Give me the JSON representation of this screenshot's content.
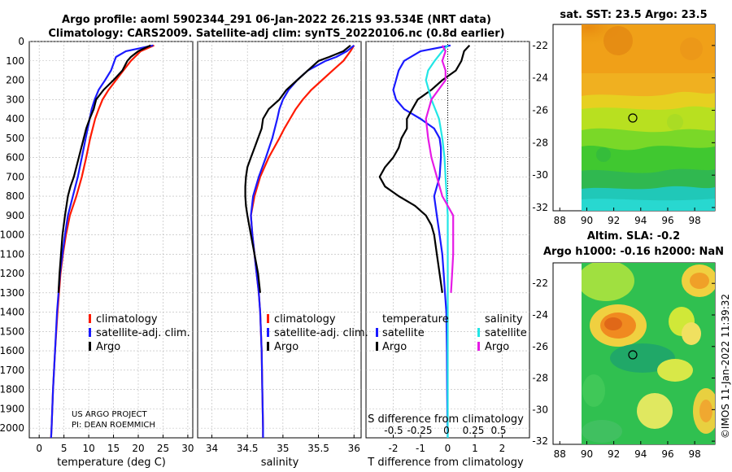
{
  "header": {
    "line1": "Argo profile: aoml 5902344_291 06-Jan-2022 26.21S 93.534E (NRT data)",
    "line2": "Climatology: CARS2009. Satellite-adj clim: synTS_20220106.nc (0.8d earlier)"
  },
  "colors": {
    "climatology": "#ff1a00",
    "satellite": "#1a1aff",
    "argo": "#000000",
    "sat_salinity": "#22e6e6",
    "argo_salinity": "#e61ae6"
  },
  "depth_axis": {
    "ticks": [
      "0",
      "100",
      "200",
      "300",
      "400",
      "500",
      "600",
      "700",
      "800",
      "900",
      "1000",
      "1100",
      "1200",
      "1300",
      "1400",
      "1500",
      "1600",
      "1700",
      "1800",
      "1900",
      "2000"
    ],
    "max": 2050
  },
  "chart_data": [
    {
      "type": "line",
      "name": "temperature",
      "xlabel": "temperature (deg C)",
      "xlim": [
        -2,
        31
      ],
      "xticks": [
        0,
        5,
        10,
        15,
        20,
        25,
        30
      ],
      "xtick_labels": [
        "0",
        "5",
        "10",
        "15",
        "20",
        "25",
        "30"
      ],
      "ylim": [
        2050,
        0
      ],
      "series": [
        {
          "name": "climatology",
          "depth": [
            20,
            50,
            100,
            150,
            200,
            250,
            300,
            350,
            400,
            500,
            600,
            700,
            800,
            900,
            1000,
            1100,
            1200,
            1400,
            1600,
            1800,
            2000,
            2050
          ],
          "values": [
            23.2,
            20.5,
            18.5,
            17.0,
            15.5,
            14.0,
            12.8,
            12.0,
            11.3,
            10.3,
            9.5,
            8.6,
            7.5,
            6.2,
            5.4,
            4.8,
            4.3,
            3.7,
            3.2,
            2.8,
            2.5,
            2.4
          ]
        },
        {
          "name": "satellite-adj. clim.",
          "depth": [
            20,
            50,
            80,
            100,
            150,
            200,
            250,
            300,
            350,
            400,
            500,
            600,
            700,
            800,
            900,
            1000,
            1100,
            1200,
            1400,
            1600,
            1800,
            2000,
            2050
          ],
          "values": [
            23.0,
            17.5,
            15.5,
            15.2,
            14.5,
            13.3,
            12.0,
            11.2,
            10.6,
            10.2,
            9.4,
            8.6,
            7.8,
            6.8,
            5.8,
            5.2,
            4.7,
            4.2,
            3.6,
            3.2,
            2.8,
            2.5,
            2.4
          ]
        },
        {
          "name": "Argo",
          "depth": [
            20,
            50,
            80,
            100,
            150,
            200,
            250,
            300,
            350,
            400,
            450,
            500,
            600,
            700,
            750,
            800,
            900,
            1000,
            1100,
            1200,
            1300
          ],
          "values": [
            22.5,
            20.0,
            18.5,
            17.8,
            16.8,
            15.0,
            13.0,
            11.5,
            11.0,
            10.2,
            9.5,
            9.0,
            8.0,
            7.0,
            6.3,
            5.8,
            5.2,
            4.7,
            4.4,
            4.1,
            3.9
          ]
        }
      ],
      "legend": [
        "climatology",
        "satellite-adj. clim.",
        "Argo"
      ],
      "annotations": [
        "US ARGO PROJECT",
        "PI: DEAN ROEMMICH"
      ]
    },
    {
      "type": "line",
      "name": "salinity",
      "xlabel": "salinity",
      "xlim": [
        33.8,
        36.1
      ],
      "xticks": [
        34,
        34.5,
        35,
        35.5,
        36
      ],
      "xtick_labels": [
        "34",
        "34.5",
        "35",
        "35.5",
        "36"
      ],
      "ylim": [
        2050,
        0
      ],
      "series": [
        {
          "name": "climatology",
          "depth": [
            20,
            50,
            100,
            150,
            200,
            250,
            300,
            350,
            400,
            450,
            500,
            600,
            700,
            800,
            900,
            1000,
            1100,
            1200,
            1300,
            1400,
            1600,
            1800,
            2000,
            2050
          ],
          "values": [
            36.0,
            35.95,
            35.85,
            35.7,
            35.55,
            35.4,
            35.28,
            35.18,
            35.1,
            35.02,
            34.95,
            34.8,
            34.68,
            34.6,
            34.55,
            34.57,
            34.6,
            34.63,
            34.66,
            34.68,
            34.7,
            34.71,
            34.72,
            34.72
          ]
        },
        {
          "name": "satellite-adj. clim.",
          "depth": [
            20,
            50,
            80,
            100,
            150,
            200,
            250,
            300,
            350,
            400,
            500,
            600,
            700,
            800,
            900,
            1000,
            1100,
            1200,
            1300,
            1400,
            1600,
            1800,
            2000,
            2050
          ],
          "values": [
            36.0,
            35.9,
            35.75,
            35.6,
            35.35,
            35.2,
            35.08,
            35.0,
            34.95,
            34.92,
            34.85,
            34.76,
            34.66,
            34.58,
            34.55,
            34.57,
            34.6,
            34.63,
            34.66,
            34.68,
            34.7,
            34.71,
            34.72,
            34.72
          ]
        },
        {
          "name": "Argo",
          "depth": [
            20,
            50,
            80,
            100,
            150,
            200,
            250,
            300,
            350,
            400,
            450,
            500,
            550,
            600,
            650,
            700,
            750,
            800,
            850,
            900,
            1000,
            1100,
            1200,
            1300
          ],
          "values": [
            35.95,
            35.85,
            35.65,
            35.5,
            35.35,
            35.2,
            35.05,
            34.95,
            34.8,
            34.72,
            34.7,
            34.65,
            34.6,
            34.55,
            34.5,
            34.48,
            34.47,
            34.47,
            34.48,
            34.5,
            34.55,
            34.6,
            34.65,
            34.68
          ]
        }
      ],
      "legend": [
        "climatology",
        "satellite-adj. clim.",
        "Argo"
      ]
    },
    {
      "type": "line",
      "name": "difference from climatology",
      "xlabel": "T difference from climatology",
      "xlabel_top": "S difference from climatology",
      "xlim": [
        -3,
        3
      ],
      "xticks": [
        -2,
        -1,
        0,
        1,
        2
      ],
      "xtick_labels": [
        "-2",
        "-1",
        "0",
        "1",
        "2"
      ],
      "s_ticks": [
        "-0.5",
        "-0.25",
        "0",
        "0.25",
        "0.5"
      ],
      "ylim": [
        2050,
        0
      ],
      "series": [
        {
          "name": "temperature satellite",
          "depth": [
            20,
            50,
            100,
            150,
            200,
            250,
            300,
            350,
            400,
            450,
            500,
            550,
            600,
            700,
            800,
            900,
            1000,
            1100,
            1200,
            1300,
            1400,
            1600,
            1800,
            2000,
            2050
          ],
          "values": [
            0.1,
            -1.0,
            -1.6,
            -1.8,
            -1.9,
            -2.0,
            -1.9,
            -1.6,
            -1.0,
            -0.5,
            -0.3,
            -0.25,
            -0.25,
            -0.3,
            -0.5,
            -0.4,
            -0.3,
            -0.2,
            -0.15,
            -0.1,
            -0.05,
            -0.03,
            -0.02,
            -0.01,
            0.0
          ]
        },
        {
          "name": "temperature Argo",
          "depth": [
            20,
            50,
            100,
            150,
            200,
            250,
            300,
            350,
            400,
            450,
            500,
            550,
            600,
            650,
            700,
            750,
            800,
            850,
            900,
            950,
            1000,
            1100,
            1200,
            1300
          ],
          "values": [
            0.8,
            0.6,
            0.5,
            0.3,
            -0.2,
            -0.6,
            -1.1,
            -1.3,
            -1.5,
            -1.5,
            -1.7,
            -1.8,
            -2.0,
            -2.3,
            -2.5,
            -2.3,
            -1.8,
            -1.2,
            -0.8,
            -0.6,
            -0.5,
            -0.4,
            -0.3,
            -0.2
          ]
        },
        {
          "name": "salinity satellite",
          "depth": [
            20,
            50,
            100,
            150,
            200,
            300,
            400,
            500,
            600,
            700,
            800,
            900,
            1000,
            1200,
            1400,
            1600,
            1800,
            2000,
            2050
          ],
          "values": [
            0.0,
            -0.05,
            -0.12,
            -0.18,
            -0.2,
            -0.15,
            -0.08,
            -0.05,
            -0.03,
            -0.02,
            -0.01,
            0.0,
            0.0,
            0.0,
            0.0,
            0.0,
            0.0,
            0.0,
            0.0
          ]
        },
        {
          "name": "salinity Argo",
          "depth": [
            20,
            50,
            100,
            150,
            200,
            300,
            400,
            500,
            600,
            700,
            800,
            900,
            1000,
            1100,
            1200,
            1300
          ],
          "values": [
            -0.05,
            -0.02,
            -0.05,
            -0.02,
            -0.02,
            -0.15,
            -0.2,
            -0.18,
            -0.15,
            -0.1,
            -0.05,
            0.05,
            0.05,
            0.05,
            0.04,
            0.03
          ]
        }
      ],
      "legend_temperature": {
        "title": "temperature",
        "items": [
          "satellite",
          "Argo"
        ]
      },
      "legend_salinity": {
        "title": "salinity",
        "items": [
          "satellite",
          "Argo"
        ]
      }
    },
    {
      "type": "heatmap",
      "name": "sat SST map",
      "title": "sat. SST: 23.5  Argo: 23.5",
      "xlim": [
        87.5,
        99.5
      ],
      "ylim": [
        -32.2,
        -20.7
      ],
      "xticks": [
        88,
        90,
        92,
        94,
        96,
        98
      ],
      "yticks": [
        -22,
        -24,
        -26,
        -28,
        -30,
        -32
      ],
      "float_position": [
        93.534,
        -26.21
      ]
    },
    {
      "type": "heatmap",
      "name": "SLA map",
      "title1": "Altim. SLA: -0.2",
      "title2": "Argo h1000: -0.16 h2000: NaN",
      "xlim": [
        87.5,
        99.5
      ],
      "ylim": [
        -32.2,
        -20.7
      ],
      "xticks": [
        88,
        90,
        92,
        94,
        96,
        98
      ],
      "yticks": [
        -22,
        -24,
        -26,
        -28,
        -30,
        -32
      ],
      "float_position": [
        93.534,
        -26.21
      ]
    }
  ],
  "footer": {
    "stamp": "©IMOS 11-Jan-2022 11:39:32"
  }
}
